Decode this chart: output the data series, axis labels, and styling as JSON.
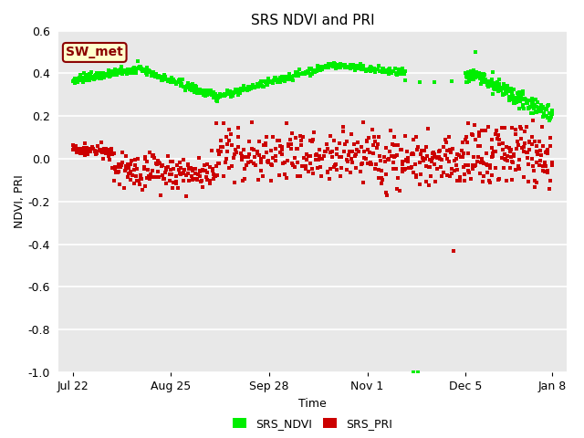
{
  "title": "SRS NDVI and PRI",
  "xlabel": "Time",
  "ylabel": "NDVI, PRI",
  "ylim": [
    -1.0,
    0.6
  ],
  "bg_color": "#e8e8e8",
  "fig_color": "#ffffff",
  "annotation_text": "SW_met",
  "annotation_bg": "#ffffcc",
  "annotation_border": "#8b0000",
  "legend_labels": [
    "SRS_NDVI",
    "SRS_PRI"
  ],
  "ndvi_color": "#00ee00",
  "pri_color": "#cc0000",
  "xtick_labels": [
    "Jul 22",
    "Aug 25",
    "Sep 28",
    "Nov 1",
    "Dec 5",
    "Jan 8"
  ],
  "xtick_positions": [
    0,
    34,
    68,
    102,
    136,
    166
  ],
  "ytick_positions": [
    -1.0,
    -0.8,
    -0.6,
    -0.4,
    -0.2,
    0.0,
    0.2,
    0.4,
    0.6
  ],
  "marker_size": 3,
  "seed": 42
}
